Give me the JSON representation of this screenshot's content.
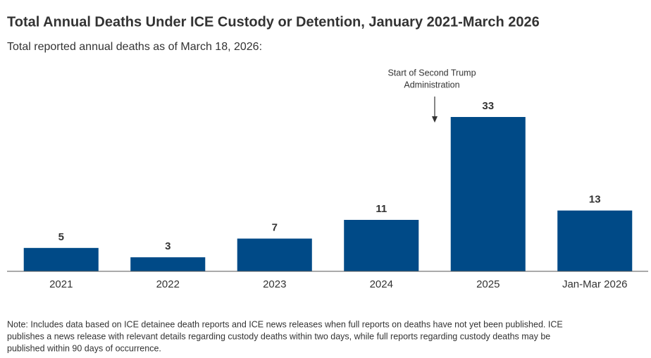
{
  "chart_data": {
    "type": "bar",
    "title": "Total Annual Deaths Under ICE Custody or Detention, January 2021-March 2026",
    "subtitle": "Total reported annual deaths as of March 18, 2026:",
    "categories": [
      "2021",
      "2022",
      "2023",
      "2024",
      "2025",
      "Jan-Mar 2026"
    ],
    "values": [
      5,
      3,
      7,
      11,
      33,
      13
    ],
    "color": "#004a87",
    "annotation": [
      "Start of Second Trump",
      "Administration"
    ],
    "note": [
      "Note: Includes data based on ICE detainee death reports and ICE news releases when full reports on deaths have not yet been published. ICE",
      "publishes a news release with relevant details regarding custody deaths within two days, while full reports regarding custody deaths may be",
      "published within 90 days of occurrence."
    ]
  }
}
